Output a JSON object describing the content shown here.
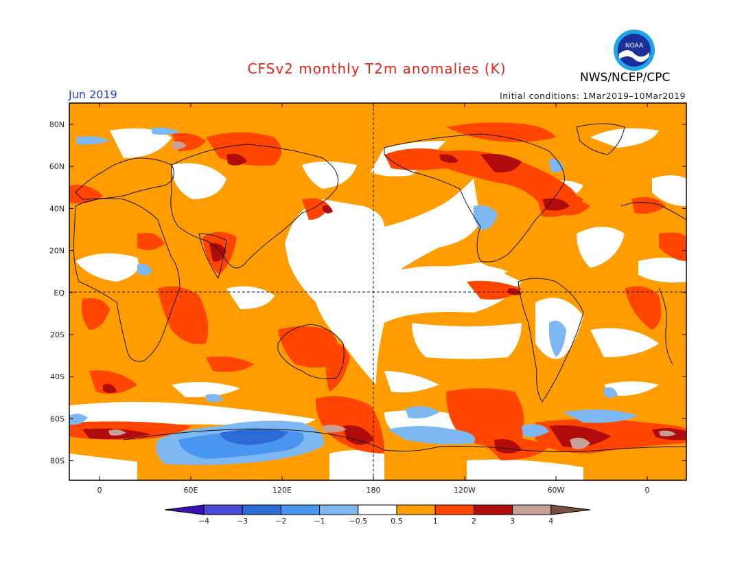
{
  "title": "CFSv2 monthly T2m anomalies (K)",
  "agency": "NWS/NCEP/CPC",
  "logo_text": "NOAA",
  "month": "Jun 2019",
  "initial_conditions": "Initial conditions: 1Mar2019–10Mar2019",
  "lat_labels": [
    "80N",
    "60N",
    "40N",
    "20N",
    "EQ",
    "20S",
    "40S",
    "60S",
    "80S"
  ],
  "lon_labels": [
    "0",
    "60E",
    "120E",
    "180",
    "120W",
    "60W",
    "0"
  ],
  "colorbar": {
    "colors": [
      "#3a10b0",
      "#4a46d6",
      "#2c6ad8",
      "#4a96ee",
      "#7eb8f2",
      "#ffffff",
      "#ff9c00",
      "#ff4500",
      "#b00c0c",
      "#c8a098",
      "#7a5040"
    ],
    "labels": [
      "−4",
      "−3",
      "−2",
      "−1",
      "−0.5",
      "0.5",
      "1",
      "2",
      "3",
      "4"
    ]
  },
  "colors": {
    "title": "#e8241a",
    "month": "#1f3fd8",
    "orange": "#ff9c00",
    "red": "#ff4500",
    "darkred": "#b00c0c",
    "tan": "#c8a098",
    "lightblue": "#7eb8f2",
    "blue": "#4a96ee"
  }
}
